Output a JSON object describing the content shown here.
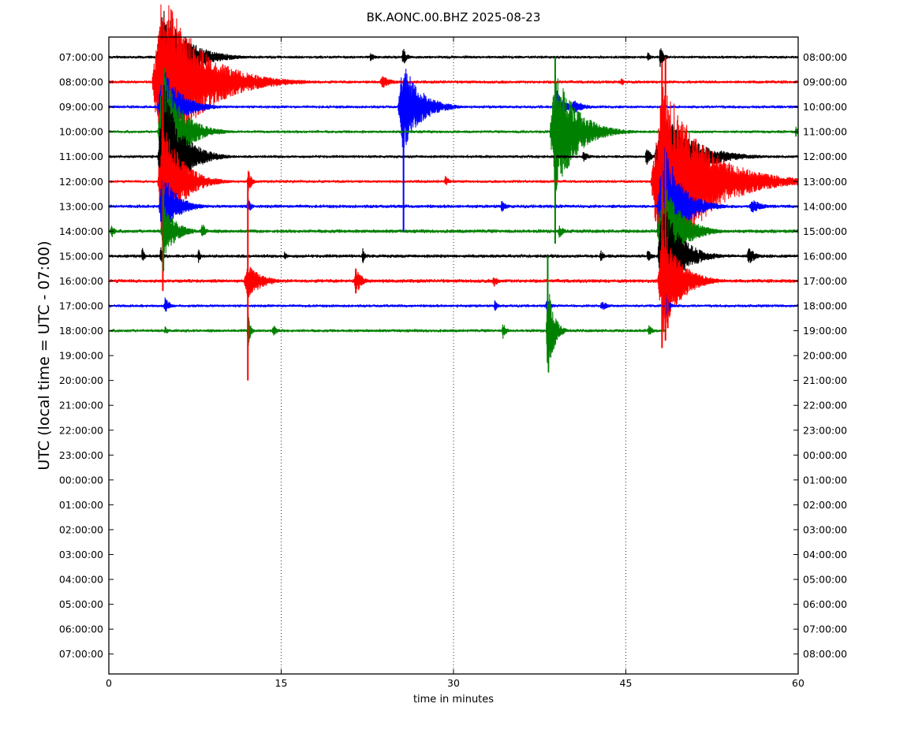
{
  "chart_data": {
    "type": "line",
    "title": "BK.AONC.00.BHZ 2025-08-23",
    "xlabel": "time in minutes",
    "ylabel": "UTC (local time = UTC - 07:00)",
    "xlim": [
      0,
      60
    ],
    "xticks": [
      0,
      15,
      30,
      45,
      60
    ],
    "xgrid": "dotted vertical lines at 15, 30, 45",
    "left_tick_labels": [
      "07:00:00",
      "08:00:00",
      "09:00:00",
      "10:00:00",
      "11:00:00",
      "12:00:00",
      "13:00:00",
      "14:00:00",
      "15:00:00",
      "16:00:00",
      "17:00:00",
      "18:00:00",
      "19:00:00",
      "20:00:00",
      "21:00:00",
      "22:00:00",
      "23:00:00",
      "00:00:00",
      "01:00:00",
      "02:00:00",
      "03:00:00",
      "04:00:00",
      "05:00:00",
      "06:00:00",
      "07:00:00"
    ],
    "right_tick_labels": [
      "08:00:00",
      "09:00:00",
      "10:00:00",
      "11:00:00",
      "12:00:00",
      "13:00:00",
      "14:00:00",
      "15:00:00",
      "16:00:00",
      "17:00:00",
      "18:00:00",
      "19:00:00",
      "20:00:00",
      "21:00:00",
      "22:00:00",
      "23:00:00",
      "00:00:00",
      "01:00:00",
      "02:00:00",
      "03:00:00",
      "04:00:00",
      "05:00:00",
      "06:00:00",
      "07:00:00",
      "08:00:00"
    ],
    "trace_colors": [
      "#000000",
      "#ff0000",
      "#0000ff",
      "#008000"
    ],
    "traces": [
      {
        "row": 0,
        "end_minute": 60,
        "noise": 0.1,
        "events": [
          {
            "t": 4.7,
            "amp": 4.5,
            "dur": 2.0
          },
          {
            "t": 22.8,
            "amp": 0.6,
            "dur": 0.3
          },
          {
            "t": 25.6,
            "amp": 1.0,
            "dur": 0.3
          },
          {
            "t": 46.9,
            "amp": 0.5,
            "dur": 0.3
          },
          {
            "t": 48.0,
            "amp": 1.2,
            "dur": 0.3
          }
        ]
      },
      {
        "row": 1,
        "end_minute": 60,
        "noise": 0.11,
        "events": [
          {
            "t": 4.7,
            "amp": 8.0,
            "dur": 3.2
          },
          {
            "t": 23.8,
            "amp": 0.6,
            "dur": 0.8
          },
          {
            "t": 44.6,
            "amp": 0.4,
            "dur": 0.3
          }
        ]
      },
      {
        "row": 2,
        "end_minute": 60,
        "noise": 0.1,
        "events": [
          {
            "t": 4.7,
            "amp": 3.5,
            "dur": 1.5
          },
          {
            "t": 25.6,
            "amp": 4.0,
            "dur": 1.5
          },
          {
            "t": 39.0,
            "amp": 1.5,
            "dur": 0.6
          },
          {
            "t": 40.5,
            "amp": 0.6,
            "dur": 1.0
          }
        ]
      },
      {
        "row": 3,
        "end_minute": 60,
        "noise": 0.1,
        "events": [
          {
            "t": 4.7,
            "amp": 6.0,
            "dur": 1.5
          },
          {
            "t": 38.9,
            "amp": 5.5,
            "dur": 1.8
          },
          {
            "t": 59.8,
            "amp": 0.5,
            "dur": 0.3
          }
        ]
      },
      {
        "row": 4,
        "end_minute": 60,
        "noise": 0.1,
        "events": [
          {
            "t": 4.7,
            "amp": 7.0,
            "dur": 1.5
          },
          {
            "t": 41.3,
            "amp": 0.5,
            "dur": 0.5
          },
          {
            "t": 46.8,
            "amp": 0.9,
            "dur": 0.4
          },
          {
            "t": 48.2,
            "amp": 4.0,
            "dur": 2.5
          }
        ]
      },
      {
        "row": 5,
        "end_minute": 60,
        "noise": 0.1,
        "events": [
          {
            "t": 4.7,
            "amp": 6.0,
            "dur": 1.5
          },
          {
            "t": 12.1,
            "amp": 1.2,
            "dur": 0.3
          },
          {
            "t": 29.3,
            "amp": 0.6,
            "dur": 0.3
          },
          {
            "t": 48.2,
            "amp": 9.0,
            "dur": 3.5
          }
        ]
      },
      {
        "row": 6,
        "end_minute": 60,
        "noise": 0.12,
        "events": [
          {
            "t": 4.7,
            "amp": 3.0,
            "dur": 1.2
          },
          {
            "t": 12.1,
            "amp": 0.8,
            "dur": 0.3
          },
          {
            "t": 34.2,
            "amp": 0.5,
            "dur": 0.5
          },
          {
            "t": 48.2,
            "amp": 6.0,
            "dur": 1.5
          },
          {
            "t": 56.0,
            "amp": 0.6,
            "dur": 1.0
          }
        ]
      },
      {
        "row": 7,
        "end_minute": 60,
        "noise": 0.13,
        "events": [
          {
            "t": 0.2,
            "amp": 0.7,
            "dur": 0.3
          },
          {
            "t": 4.8,
            "amp": 2.5,
            "dur": 1.0
          },
          {
            "t": 8.1,
            "amp": 0.9,
            "dur": 0.3
          },
          {
            "t": 39.2,
            "amp": 0.6,
            "dur": 0.4
          },
          {
            "t": 48.2,
            "amp": 5.0,
            "dur": 1.5
          }
        ]
      },
      {
        "row": 8,
        "end_minute": 60,
        "noise": 0.12,
        "events": [
          {
            "t": 2.9,
            "amp": 0.8,
            "dur": 0.2
          },
          {
            "t": 4.5,
            "amp": 1.0,
            "dur": 0.2
          },
          {
            "t": 7.8,
            "amp": 0.7,
            "dur": 0.2
          },
          {
            "t": 15.3,
            "amp": 0.5,
            "dur": 0.2
          },
          {
            "t": 22.1,
            "amp": 0.7,
            "dur": 0.2
          },
          {
            "t": 42.8,
            "amp": 0.6,
            "dur": 0.3
          },
          {
            "t": 46.9,
            "amp": 0.8,
            "dur": 0.3
          },
          {
            "t": 48.2,
            "amp": 5.0,
            "dur": 1.5
          },
          {
            "t": 55.7,
            "amp": 0.8,
            "dur": 0.6
          }
        ]
      },
      {
        "row": 9,
        "end_minute": 60,
        "noise": 0.13,
        "events": [
          {
            "t": 12.1,
            "amp": 1.6,
            "dur": 1.2
          },
          {
            "t": 21.5,
            "amp": 1.3,
            "dur": 0.5
          },
          {
            "t": 33.5,
            "amp": 0.6,
            "dur": 0.4
          },
          {
            "t": 48.2,
            "amp": 5.0,
            "dur": 1.5
          }
        ]
      },
      {
        "row": 10,
        "end_minute": 60,
        "noise": 0.1,
        "events": [
          {
            "t": 4.9,
            "amp": 0.8,
            "dur": 0.4
          },
          {
            "t": 33.6,
            "amp": 0.5,
            "dur": 0.3
          },
          {
            "t": 38.1,
            "amp": 0.8,
            "dur": 0.3
          },
          {
            "t": 42.9,
            "amp": 0.5,
            "dur": 0.5
          },
          {
            "t": 48.5,
            "amp": 1.2,
            "dur": 0.3
          }
        ]
      },
      {
        "row": 11,
        "end_minute": 48.5,
        "noise": 0.11,
        "events": [
          {
            "t": 4.9,
            "amp": 0.4,
            "dur": 0.3
          },
          {
            "t": 12.1,
            "amp": 2.0,
            "dur": 0.2
          },
          {
            "t": 14.3,
            "amp": 0.6,
            "dur": 0.4
          },
          {
            "t": 34.3,
            "amp": 0.8,
            "dur": 0.3
          },
          {
            "t": 38.2,
            "amp": 4.5,
            "dur": 0.5
          },
          {
            "t": 47.0,
            "amp": 0.5,
            "dur": 0.4
          }
        ]
      }
    ],
    "spikes": [
      {
        "t": 25.65,
        "y_top": 1.0,
        "y_bottom": 7.0,
        "color": "#0000ff"
      },
      {
        "t": 38.85,
        "y_top": 0.0,
        "y_bottom": 7.5,
        "color": "#008000"
      },
      {
        "t": 4.7,
        "y_top": 0.0,
        "y_bottom": 9.4,
        "color": "#ff0000"
      },
      {
        "t": 48.15,
        "y_top": 0.2,
        "y_bottom": 11.7,
        "color": "#ff0000"
      },
      {
        "t": 48.45,
        "y_top": 0.0,
        "y_bottom": 11.4,
        "color": "#ff0000"
      },
      {
        "t": 48.65,
        "y_top": 8.2,
        "y_bottom": 10.9,
        "color": "#ff0000"
      },
      {
        "t": 12.1,
        "y_top": 5.1,
        "y_bottom": 13.0,
        "color": "#ff0000"
      },
      {
        "t": 21.5,
        "y_top": 8.5,
        "y_bottom": 9.5,
        "color": "#ff0000"
      },
      {
        "t": 38.2,
        "y_top": 8.0,
        "y_bottom": 12.3,
        "color": "#008000"
      },
      {
        "t": 4.75,
        "y_top": 5.3,
        "y_bottom": 8.6,
        "color": "#008000"
      }
    ]
  }
}
